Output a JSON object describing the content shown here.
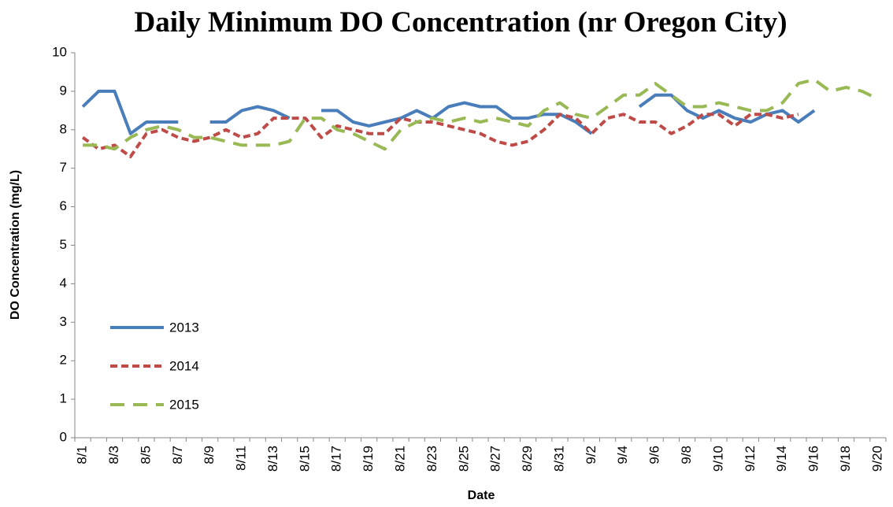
{
  "chart_data": {
    "type": "line",
    "title": "Daily Minimum  DO Concentration (nr Oregon City)",
    "x_label": "Date",
    "y_label": "DO Concentration (mg/L)",
    "categories": [
      "8/1",
      null,
      "8/3",
      null,
      "8/5",
      null,
      "8/7",
      null,
      "8/9",
      null,
      "8/11",
      null,
      "8/13",
      null,
      "8/15",
      null,
      "8/17",
      null,
      "8/19",
      null,
      "8/21",
      null,
      "8/23",
      null,
      "8/25",
      null,
      "8/27",
      null,
      "8/29",
      null,
      "8/31",
      null,
      "9/2",
      null,
      "9/4",
      null,
      "9/6",
      null,
      "9/8",
      null,
      "9/10",
      null,
      "9/12",
      null,
      "9/14",
      null,
      "9/16",
      null,
      "9/18",
      null,
      "9/20"
    ],
    "series": [
      {
        "name": "2013",
        "color": "#4a7ebb",
        "dash": "solid",
        "values": [
          8.6,
          9.0,
          9.0,
          7.9,
          8.2,
          8.2,
          8.2,
          null,
          8.2,
          8.2,
          8.5,
          8.6,
          8.5,
          8.3,
          null,
          8.5,
          8.5,
          8.2,
          8.1,
          8.2,
          8.3,
          8.5,
          8.3,
          8.6,
          8.7,
          8.6,
          8.6,
          8.3,
          8.3,
          8.4,
          8.4,
          8.2,
          7.9,
          null,
          null,
          8.6,
          8.9,
          8.9,
          8.5,
          8.3,
          8.5,
          8.3,
          8.2,
          8.4,
          8.5,
          8.2,
          8.5,
          null,
          null,
          null,
          null
        ]
      },
      {
        "name": "2014",
        "color": "#be4b48",
        "dash": "short",
        "values": [
          7.8,
          7.5,
          7.6,
          7.3,
          7.9,
          8.0,
          7.8,
          7.7,
          7.8,
          8.0,
          7.8,
          7.9,
          8.3,
          8.3,
          8.3,
          7.8,
          8.1,
          8.0,
          7.9,
          7.9,
          8.3,
          8.2,
          8.2,
          8.1,
          8.0,
          7.9,
          7.7,
          7.6,
          7.7,
          8.0,
          8.4,
          8.3,
          7.9,
          8.3,
          8.4,
          8.2,
          8.2,
          7.9,
          8.1,
          8.4,
          8.4,
          8.1,
          8.4,
          8.4,
          8.3,
          8.4,
          null,
          null,
          null,
          null,
          null
        ]
      },
      {
        "name": "2015",
        "color": "#98b954",
        "dash": "long",
        "values": [
          7.6,
          7.6,
          7.5,
          7.8,
          8.0,
          8.1,
          8.0,
          7.8,
          7.8,
          7.7,
          7.6,
          7.6,
          7.6,
          7.7,
          8.3,
          8.3,
          8.0,
          7.9,
          7.7,
          7.5,
          8.0,
          8.2,
          8.3,
          8.2,
          8.3,
          8.2,
          8.3,
          8.2,
          8.1,
          8.5,
          8.7,
          8.4,
          8.3,
          8.6,
          8.9,
          8.9,
          9.2,
          8.9,
          8.6,
          8.6,
          8.7,
          8.6,
          8.5,
          8.5,
          8.7,
          9.2,
          9.3,
          9.0,
          9.1,
          9.0,
          8.8
        ]
      }
    ],
    "ylim": [
      0,
      10
    ],
    "yticks": [
      0,
      1,
      2,
      3,
      4,
      5,
      6,
      7,
      8,
      9,
      10
    ],
    "grid": false,
    "legend": "left"
  }
}
